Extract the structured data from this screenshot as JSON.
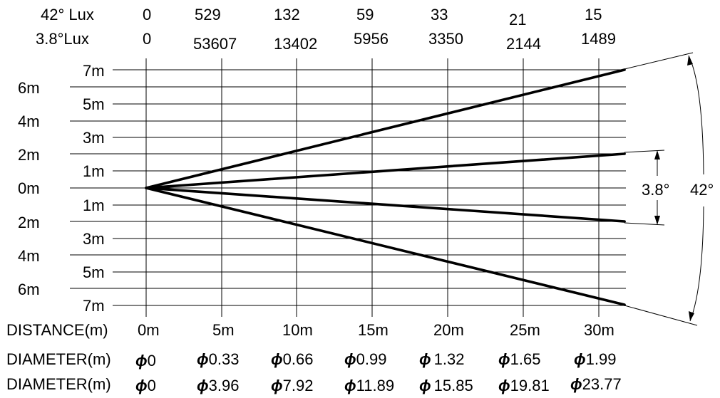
{
  "lux_rows": [
    {
      "label": "42° Lux",
      "values": [
        "0",
        "529",
        "132",
        "59",
        "33",
        "21",
        "15"
      ]
    },
    {
      "label": "3.8°Lux",
      "values": [
        "0",
        "53607",
        "13402",
        "5956",
        "3350",
        "2144",
        "1489"
      ]
    }
  ],
  "height_labels_odd": [
    "7m",
    "5m",
    "3m",
    "1m",
    "1m",
    "3m",
    "5m",
    "7m"
  ],
  "height_labels_even": [
    "6m",
    "4m",
    "2m",
    "0m",
    "2m",
    "4m",
    "6m"
  ],
  "distance": {
    "label": "DISTANCE(m)",
    "ticks": [
      "0m",
      "5m",
      "10m",
      "15m",
      "20m",
      "25m",
      "30m"
    ]
  },
  "diameter_rows": [
    {
      "label": "DIAMETER(m)",
      "symbol": "ϕ",
      "values": [
        "0",
        "0.33",
        "0.66",
        "0.99",
        "1.32",
        "1.65",
        "1.99"
      ]
    },
    {
      "label": "DIAMETER(m)",
      "symbol": "ϕ",
      "values": [
        "0",
        "3.96",
        "7.92",
        "11.89",
        "15.85",
        "19.81",
        "23.77"
      ]
    }
  ],
  "beam_angles": {
    "narrow": "3.8°",
    "wide": "42°"
  }
}
